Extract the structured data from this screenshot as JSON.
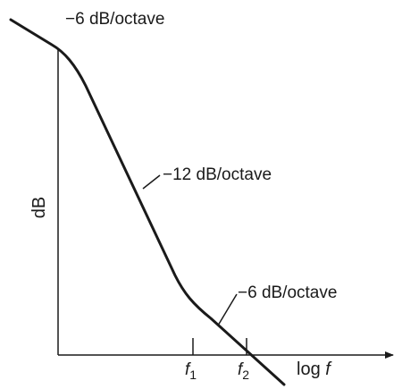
{
  "diagram": {
    "y_axis_label": "dB",
    "x_axis_label_prefix": "log ",
    "x_axis_label_var": "f",
    "segments": [
      {
        "slope_label": "−6 dB/octave"
      },
      {
        "slope_label": "−12 dB/octave"
      },
      {
        "slope_label": "−6 dB/octave"
      }
    ],
    "break_points": [
      {
        "var": "f",
        "sub": "1"
      },
      {
        "var": "f",
        "sub": "2"
      }
    ],
    "colors": {
      "curve": "#1a1a1a",
      "axes": "#1a1a1a",
      "text": "#1a1a1a"
    }
  }
}
